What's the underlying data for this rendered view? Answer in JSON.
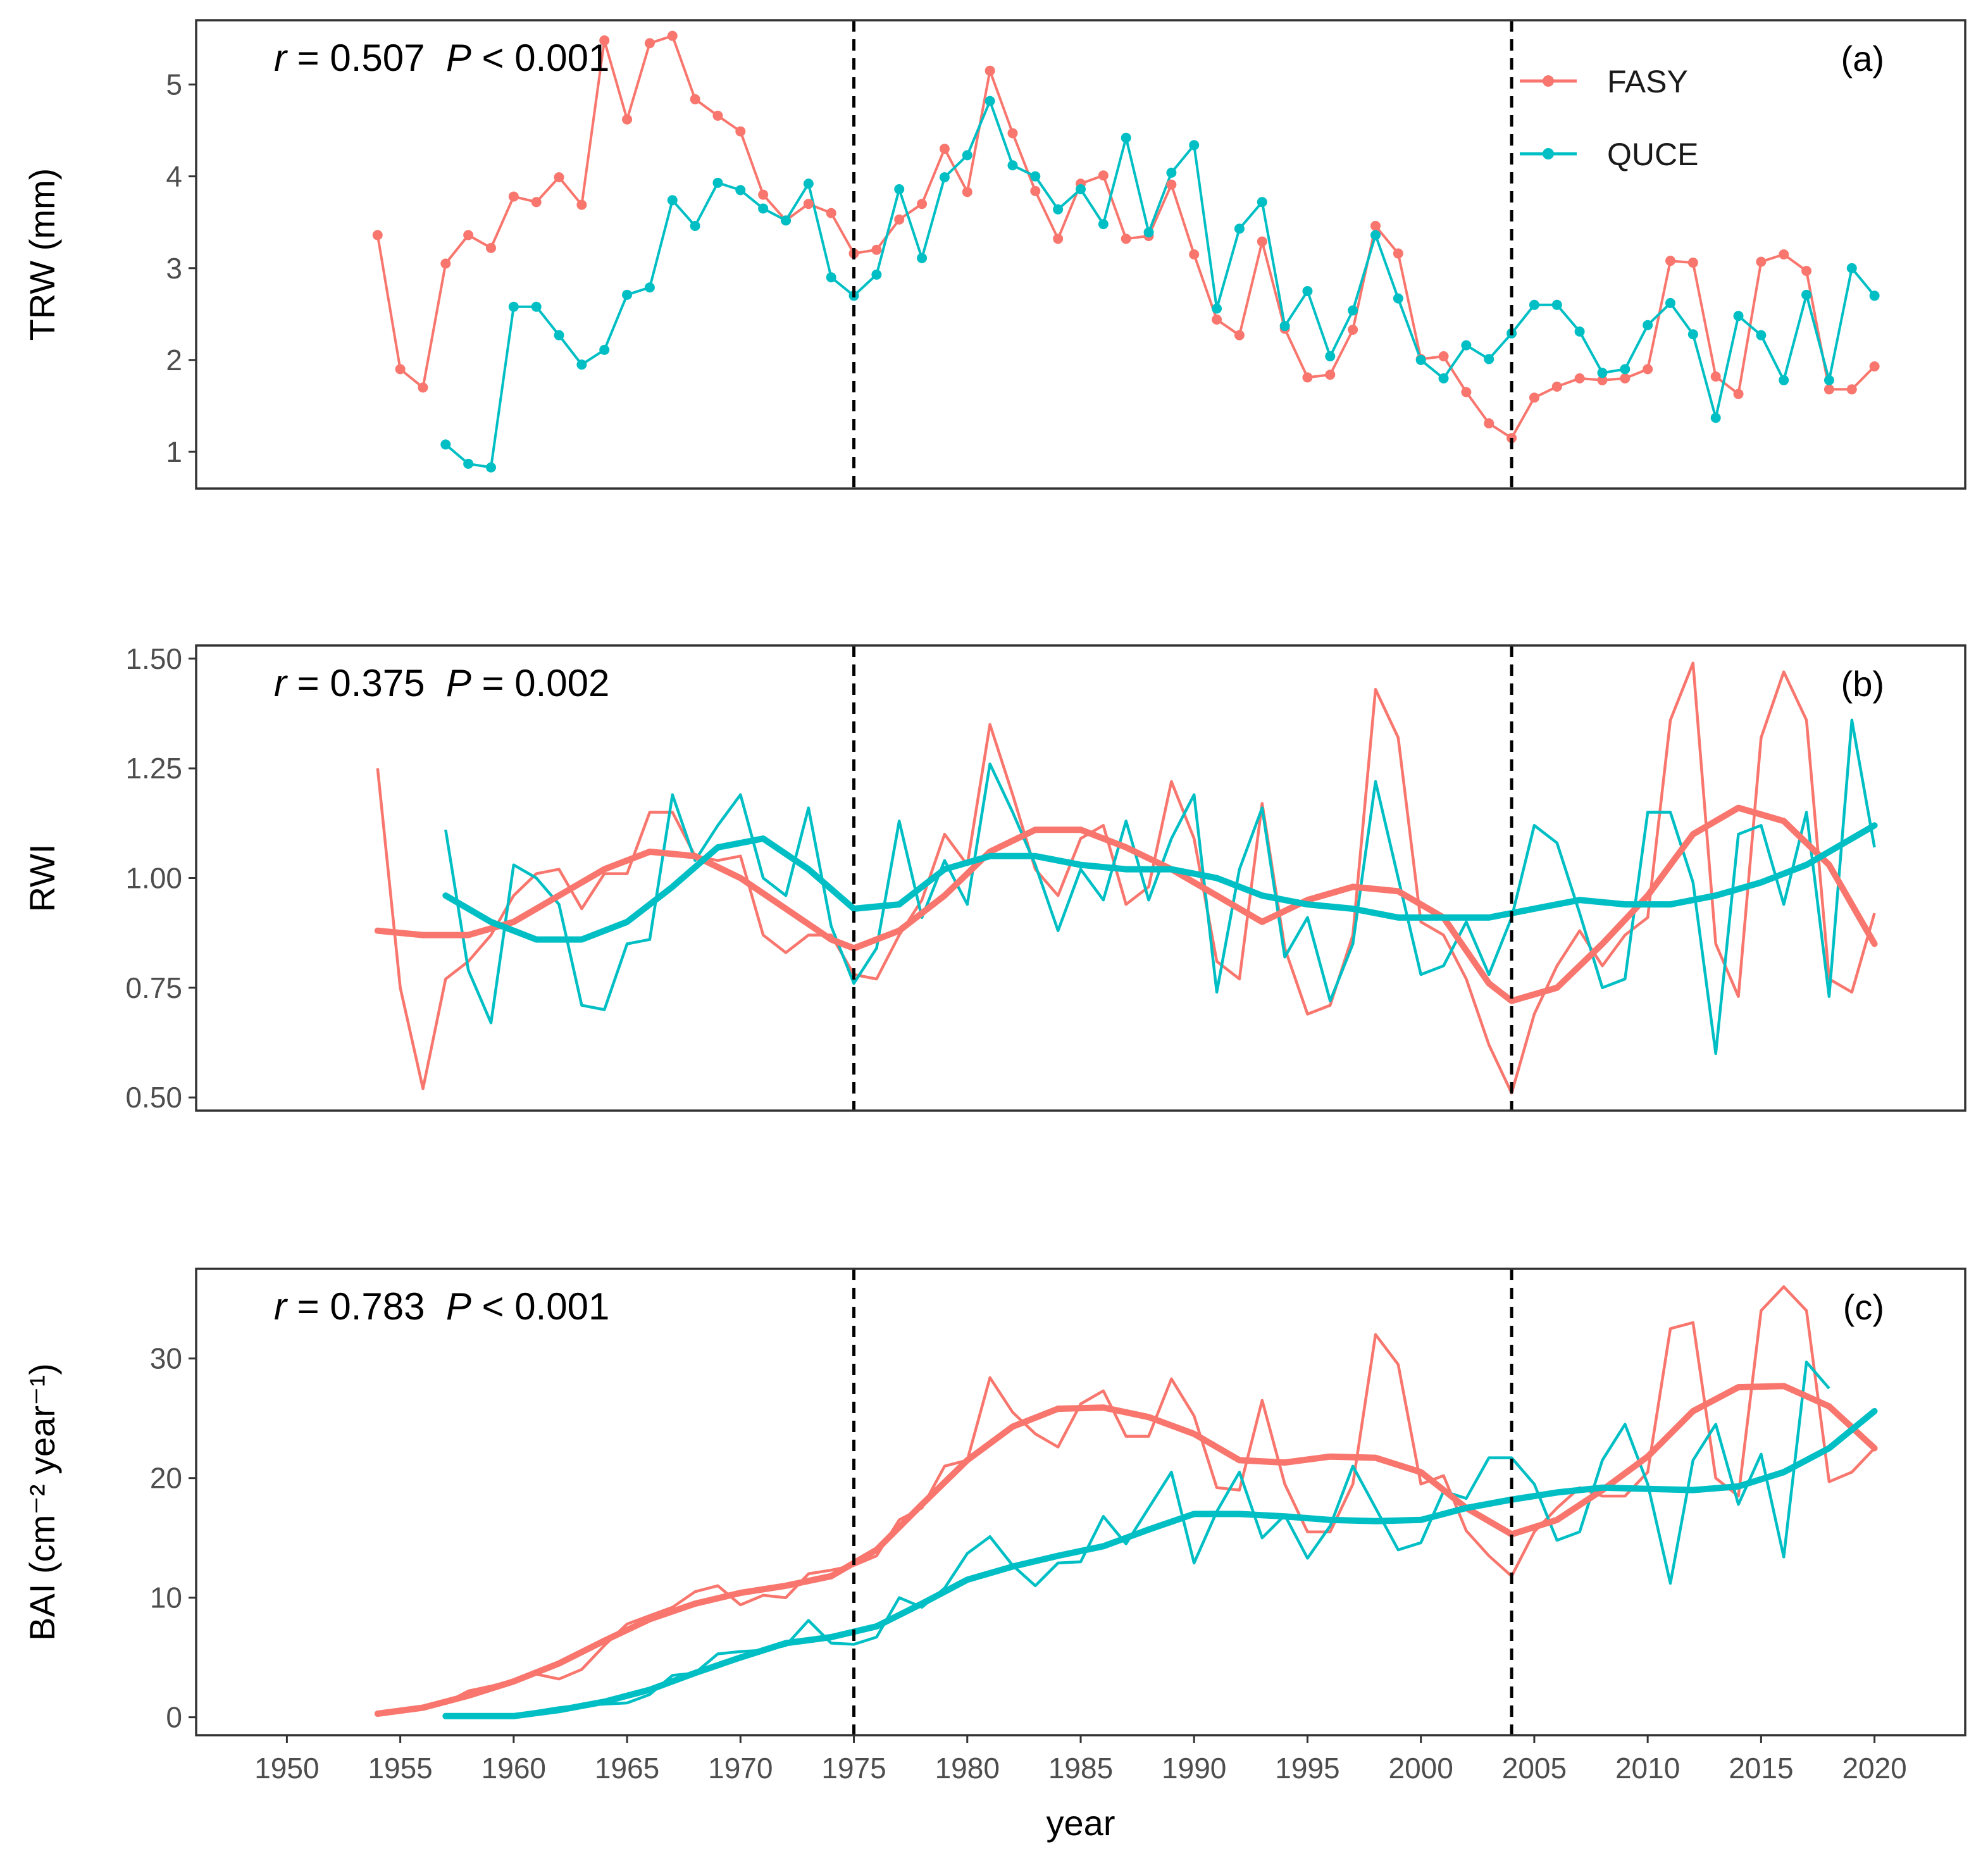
{
  "colors": {
    "FASY": "#F8766D",
    "QUCE": "#00BFC4",
    "frame": "#333333",
    "vline": "#000000"
  },
  "chart_data": [
    {
      "id": "a",
      "type": "line",
      "panel_label": "(a)",
      "ylabel": "TRW (mm)",
      "stats": {
        "r_label": "r",
        "eq": " = 0.507  ",
        "p_label": "P",
        "p_rel": " < 0.001"
      },
      "xlim": [
        1946,
        2024
      ],
      "ylim": [
        0.6,
        5.7
      ],
      "yticks": [
        1,
        2,
        3,
        4,
        5
      ],
      "ytick_labels": [
        "1",
        "2",
        "3",
        "4",
        "5"
      ],
      "vlines": [
        1975,
        2004
      ],
      "points": true,
      "series": [
        {
          "name": "FASY",
          "x_start": 1954,
          "values": [
            3.36,
            1.9,
            1.7,
            3.05,
            3.36,
            3.22,
            3.78,
            3.72,
            3.99,
            3.69,
            5.48,
            4.62,
            5.45,
            5.53,
            4.84,
            4.66,
            4.49,
            3.8,
            3.52,
            3.7,
            3.6,
            3.16,
            3.2,
            3.53,
            3.7,
            4.3,
            3.83,
            5.15,
            4.47,
            3.84,
            3.32,
            3.92,
            4.01,
            3.32,
            3.35,
            3.91,
            3.15,
            2.44,
            2.27,
            3.29,
            2.34,
            1.81,
            1.84,
            2.33,
            3.46,
            3.16,
            2.01,
            2.04,
            1.65,
            1.31,
            1.15,
            1.59,
            1.71,
            1.8,
            1.78,
            1.8,
            1.9,
            3.08,
            3.06,
            1.82,
            1.63,
            3.07,
            3.15,
            2.97,
            1.68,
            1.68,
            1.93
          ]
        },
        {
          "name": "QUCE",
          "x_start": 1957,
          "values": [
            1.08,
            0.87,
            0.83,
            2.58,
            2.58,
            2.27,
            1.95,
            2.11,
            2.71,
            2.79,
            3.74,
            3.46,
            3.93,
            3.85,
            3.65,
            3.52,
            3.92,
            2.9,
            2.7,
            2.93,
            3.86,
            3.11,
            3.99,
            4.23,
            4.82,
            4.12,
            4.0,
            3.64,
            3.86,
            3.48,
            4.42,
            3.39,
            4.04,
            4.34,
            2.56,
            3.43,
            3.72,
            2.37,
            2.75,
            2.04,
            2.54,
            3.36,
            2.67,
            2.0,
            1.8,
            2.16,
            2.01,
            2.29,
            2.6,
            2.6,
            2.31,
            1.86,
            1.9,
            2.38,
            2.62,
            2.28,
            1.37,
            2.48,
            2.27,
            1.78,
            2.71,
            1.78,
            3.0,
            2.7
          ]
        }
      ],
      "legend": [
        {
          "label": "FASY"
        },
        {
          "label": "QUCE"
        }
      ]
    },
    {
      "id": "b",
      "type": "line",
      "panel_label": "(b)",
      "ylabel": "RWI",
      "stats": {
        "r_label": "r",
        "eq": " = 0.375  ",
        "p_label": "P",
        "p_rel": " = 0.002"
      },
      "xlim": [
        1946,
        2024
      ],
      "ylim": [
        0.47,
        1.53
      ],
      "yticks": [
        0.5,
        0.75,
        1.0,
        1.25,
        1.5
      ],
      "ytick_labels": [
        "0.50",
        "0.75",
        "1.00",
        "1.25",
        "1.50"
      ],
      "vlines": [
        1975,
        2004
      ],
      "points": false,
      "series": [
        {
          "name": "FASY",
          "x_start": 1954,
          "values": [
            1.25,
            0.75,
            0.52,
            0.77,
            0.81,
            0.87,
            0.96,
            1.01,
            1.02,
            0.93,
            1.01,
            1.01,
            1.15,
            1.15,
            1.05,
            1.04,
            1.05,
            0.87,
            0.83,
            0.87,
            0.87,
            0.78,
            0.77,
            0.87,
            0.95,
            1.1,
            1.03,
            1.35,
            1.19,
            1.02,
            0.96,
            1.09,
            1.12,
            0.94,
            0.98,
            1.22,
            1.09,
            0.81,
            0.77,
            1.17,
            0.84,
            0.69,
            0.71,
            0.87,
            1.43,
            1.32,
            0.9,
            0.87,
            0.77,
            0.62,
            0.51,
            0.69,
            0.8,
            0.88,
            0.8,
            0.87,
            0.91,
            1.36,
            1.49,
            0.85,
            0.73,
            1.32,
            1.47,
            1.36,
            0.77,
            0.74,
            0.92
          ]
        },
        {
          "name": "QUCE",
          "x_start": 1957,
          "values": [
            1.11,
            0.79,
            0.67,
            1.03,
            1.0,
            0.94,
            0.71,
            0.7,
            0.85,
            0.86,
            1.19,
            1.04,
            1.12,
            1.19,
            1.0,
            0.96,
            1.16,
            0.89,
            0.76,
            0.84,
            1.13,
            0.91,
            1.04,
            0.94,
            1.26,
            1.15,
            1.03,
            0.88,
            1.02,
            0.95,
            1.13,
            0.95,
            1.09,
            1.19,
            0.74,
            1.02,
            1.16,
            0.82,
            0.91,
            0.72,
            0.85,
            1.22,
            1.0,
            0.78,
            0.8,
            0.9,
            0.78,
            0.91,
            1.12,
            1.08,
            0.92,
            0.75,
            0.77,
            1.15,
            1.15,
            0.99,
            0.6,
            1.1,
            1.12,
            0.94,
            1.15,
            0.73,
            1.36,
            1.07
          ]
        }
      ],
      "smooth": [
        {
          "name": "FASY",
          "points": [
            [
              1954,
              0.88
            ],
            [
              1956,
              0.87
            ],
            [
              1958,
              0.87
            ],
            [
              1960,
              0.9
            ],
            [
              1962,
              0.96
            ],
            [
              1964,
              1.02
            ],
            [
              1966,
              1.06
            ],
            [
              1968,
              1.05
            ],
            [
              1970,
              1.0
            ],
            [
              1972,
              0.93
            ],
            [
              1974,
              0.86
            ],
            [
              1975,
              0.84
            ],
            [
              1977,
              0.88
            ],
            [
              1979,
              0.96
            ],
            [
              1981,
              1.06
            ],
            [
              1983,
              1.11
            ],
            [
              1985,
              1.11
            ],
            [
              1987,
              1.07
            ],
            [
              1989,
              1.02
            ],
            [
              1991,
              0.96
            ],
            [
              1993,
              0.9
            ],
            [
              1995,
              0.95
            ],
            [
              1997,
              0.98
            ],
            [
              1999,
              0.97
            ],
            [
              2001,
              0.91
            ],
            [
              2003,
              0.76
            ],
            [
              2004,
              0.72
            ],
            [
              2006,
              0.75
            ],
            [
              2008,
              0.85
            ],
            [
              2010,
              0.96
            ],
            [
              2012,
              1.1
            ],
            [
              2014,
              1.16
            ],
            [
              2016,
              1.13
            ],
            [
              2018,
              1.03
            ],
            [
              2020,
              0.85
            ]
          ]
        },
        {
          "name": "QUCE",
          "points": [
            [
              1957,
              0.96
            ],
            [
              1959,
              0.9
            ],
            [
              1961,
              0.86
            ],
            [
              1963,
              0.86
            ],
            [
              1965,
              0.9
            ],
            [
              1967,
              0.98
            ],
            [
              1969,
              1.07
            ],
            [
              1971,
              1.09
            ],
            [
              1973,
              1.02
            ],
            [
              1975,
              0.93
            ],
            [
              1977,
              0.94
            ],
            [
              1979,
              1.02
            ],
            [
              1981,
              1.05
            ],
            [
              1983,
              1.05
            ],
            [
              1985,
              1.03
            ],
            [
              1987,
              1.02
            ],
            [
              1989,
              1.02
            ],
            [
              1991,
              1.0
            ],
            [
              1993,
              0.96
            ],
            [
              1995,
              0.94
            ],
            [
              1997,
              0.93
            ],
            [
              1999,
              0.91
            ],
            [
              2001,
              0.91
            ],
            [
              2003,
              0.91
            ],
            [
              2005,
              0.93
            ],
            [
              2007,
              0.95
            ],
            [
              2009,
              0.94
            ],
            [
              2011,
              0.94
            ],
            [
              2013,
              0.96
            ],
            [
              2015,
              0.99
            ],
            [
              2017,
              1.03
            ],
            [
              2020,
              1.12
            ]
          ]
        }
      ]
    },
    {
      "id": "c",
      "type": "line",
      "panel_label": "(c)",
      "ylabel": "BAI (cm⁻² year⁻¹)",
      "stats": {
        "r_label": "r",
        "eq": " = 0.783  ",
        "p_label": "P",
        "p_rel": " < 0.001"
      },
      "xlabel": "year",
      "xlim": [
        1946,
        2024
      ],
      "ylim": [
        -1.5,
        37.5
      ],
      "yticks": [
        0,
        10,
        20,
        30
      ],
      "ytick_labels": [
        "0",
        "10",
        "20",
        "30"
      ],
      "xticks": [
        1950,
        1955,
        1960,
        1965,
        1970,
        1975,
        1980,
        1985,
        1990,
        1995,
        2000,
        2005,
        2010,
        2015,
        2020
      ],
      "xtick_labels": [
        "1950",
        "1955",
        "1960",
        "1965",
        "1970",
        "1975",
        "1980",
        "1985",
        "1990",
        "1995",
        "2000",
        "2005",
        "2010",
        "2015",
        "2020"
      ],
      "vlines": [
        1975,
        2004
      ],
      "points": false,
      "series": [
        {
          "name": "FASY",
          "x_start": 1954,
          "values": [
            0.3,
            0.5,
            0.8,
            1.2,
            2.2,
            2.6,
            3.1,
            3.6,
            3.2,
            4.0,
            6.0,
            7.8,
            8.5,
            9.2,
            10.5,
            11.0,
            9.4,
            10.2,
            10.0,
            12.0,
            12.3,
            12.7,
            13.5,
            16.5,
            17.5,
            21.0,
            21.5,
            28.4,
            25.5,
            23.7,
            22.6,
            26.2,
            27.3,
            23.5,
            23.5,
            28.3,
            25.2,
            19.2,
            19.0,
            26.5,
            19.5,
            15.5,
            15.5,
            19.5,
            32.0,
            29.5,
            19.5,
            20.2,
            15.6,
            13.5,
            11.8,
            15.5,
            17.5,
            19.2,
            18.5,
            18.5,
            20.5,
            32.5,
            33.0,
            20.0,
            18.5,
            34.0,
            36.0,
            34.0,
            19.7,
            20.5,
            22.5
          ]
        },
        {
          "name": "QUCE",
          "x_start": 1957,
          "values": [
            0.1,
            0.1,
            0.1,
            0.2,
            0.5,
            0.8,
            1.0,
            1.1,
            1.2,
            1.9,
            3.5,
            3.7,
            5.3,
            5.5,
            5.6,
            6.0,
            8.1,
            6.2,
            6.1,
            6.7,
            10.0,
            9.2,
            10.8,
            13.7,
            15.1,
            12.7,
            11.0,
            12.9,
            13.0,
            16.8,
            14.5,
            17.5,
            20.5,
            12.9,
            17.2,
            20.5,
            15.0,
            16.9,
            13.3,
            16.0,
            21.0,
            17.5,
            14.0,
            14.6,
            18.9,
            18.3,
            21.7,
            21.7,
            19.5,
            14.8,
            15.5,
            21.5,
            24.5,
            19.5,
            11.2,
            21.5,
            24.5,
            17.8,
            22.0,
            13.4,
            29.7,
            27.5
          ]
        }
      ],
      "smooth": [
        {
          "name": "FASY",
          "points": [
            [
              1954,
              0.3
            ],
            [
              1956,
              0.8
            ],
            [
              1958,
              1.8
            ],
            [
              1960,
              3.0
            ],
            [
              1962,
              4.5
            ],
            [
              1964,
              6.4
            ],
            [
              1966,
              8.2
            ],
            [
              1968,
              9.5
            ],
            [
              1970,
              10.4
            ],
            [
              1972,
              11.0
            ],
            [
              1974,
              11.8
            ],
            [
              1976,
              14.0
            ],
            [
              1978,
              17.8
            ],
            [
              1980,
              21.5
            ],
            [
              1982,
              24.3
            ],
            [
              1984,
              25.8
            ],
            [
              1986,
              25.9
            ],
            [
              1988,
              25.1
            ],
            [
              1990,
              23.7
            ],
            [
              1992,
              21.5
            ],
            [
              1994,
              21.3
            ],
            [
              1996,
              21.8
            ],
            [
              1998,
              21.7
            ],
            [
              2000,
              20.5
            ],
            [
              2002,
              17.5
            ],
            [
              2004,
              15.3
            ],
            [
              2006,
              16.5
            ],
            [
              2008,
              19.0
            ],
            [
              2010,
              21.8
            ],
            [
              2012,
              25.6
            ],
            [
              2014,
              27.6
            ],
            [
              2016,
              27.7
            ],
            [
              2018,
              26.0
            ],
            [
              2020,
              22.5
            ]
          ]
        },
        {
          "name": "QUCE",
          "points": [
            [
              1957,
              0.1
            ],
            [
              1960,
              0.1
            ],
            [
              1962,
              0.6
            ],
            [
              1964,
              1.3
            ],
            [
              1966,
              2.3
            ],
            [
              1968,
              3.7
            ],
            [
              1970,
              5.0
            ],
            [
              1972,
              6.2
            ],
            [
              1974,
              6.7
            ],
            [
              1976,
              7.6
            ],
            [
              1978,
              9.5
            ],
            [
              1980,
              11.5
            ],
            [
              1982,
              12.6
            ],
            [
              1984,
              13.5
            ],
            [
              1986,
              14.3
            ],
            [
              1988,
              15.7
            ],
            [
              1990,
              17.0
            ],
            [
              1992,
              17.0
            ],
            [
              1994,
              16.8
            ],
            [
              1996,
              16.5
            ],
            [
              1998,
              16.4
            ],
            [
              2000,
              16.5
            ],
            [
              2002,
              17.5
            ],
            [
              2004,
              18.2
            ],
            [
              2006,
              18.8
            ],
            [
              2008,
              19.2
            ],
            [
              2010,
              19.1
            ],
            [
              2012,
              19.0
            ],
            [
              2014,
              19.3
            ],
            [
              2016,
              20.5
            ],
            [
              2018,
              22.5
            ],
            [
              2020,
              25.6
            ]
          ]
        }
      ]
    }
  ]
}
